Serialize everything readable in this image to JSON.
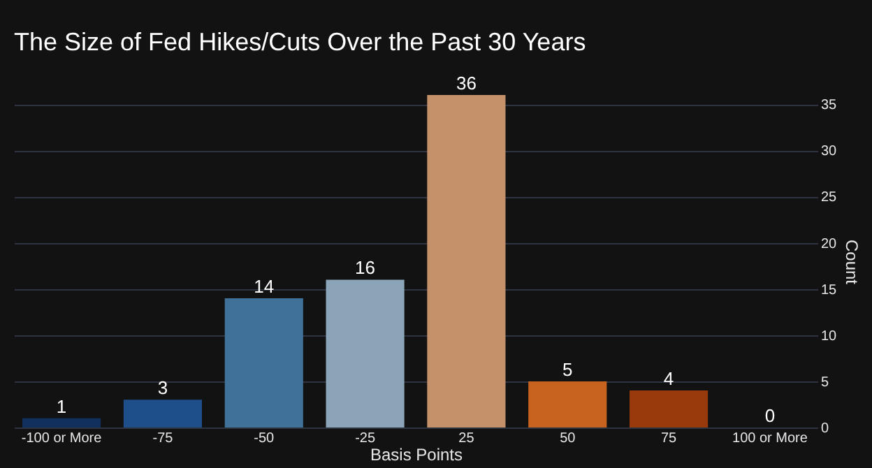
{
  "chart_data": {
    "type": "bar",
    "title": "The Size of Fed Hikes/Cuts Over the Past 30 Years",
    "xlabel": "Basis Points",
    "ylabel": "Count",
    "categories": [
      "-100 or More",
      "-75",
      "-50",
      "-25",
      "25",
      "50",
      "75",
      "100 or More"
    ],
    "values": [
      1,
      3,
      14,
      16,
      36,
      5,
      4,
      0
    ],
    "colors": [
      "#12305e",
      "#1e4f8a",
      "#3f7199",
      "#8ba4b8",
      "#c4916a",
      "#c8631f",
      "#993a0d",
      "#6b2a08"
    ],
    "ylim": [
      0,
      36
    ],
    "yticks": [
      0,
      5,
      10,
      15,
      20,
      25,
      30,
      35
    ],
    "grid": "y",
    "data_labels": true
  }
}
